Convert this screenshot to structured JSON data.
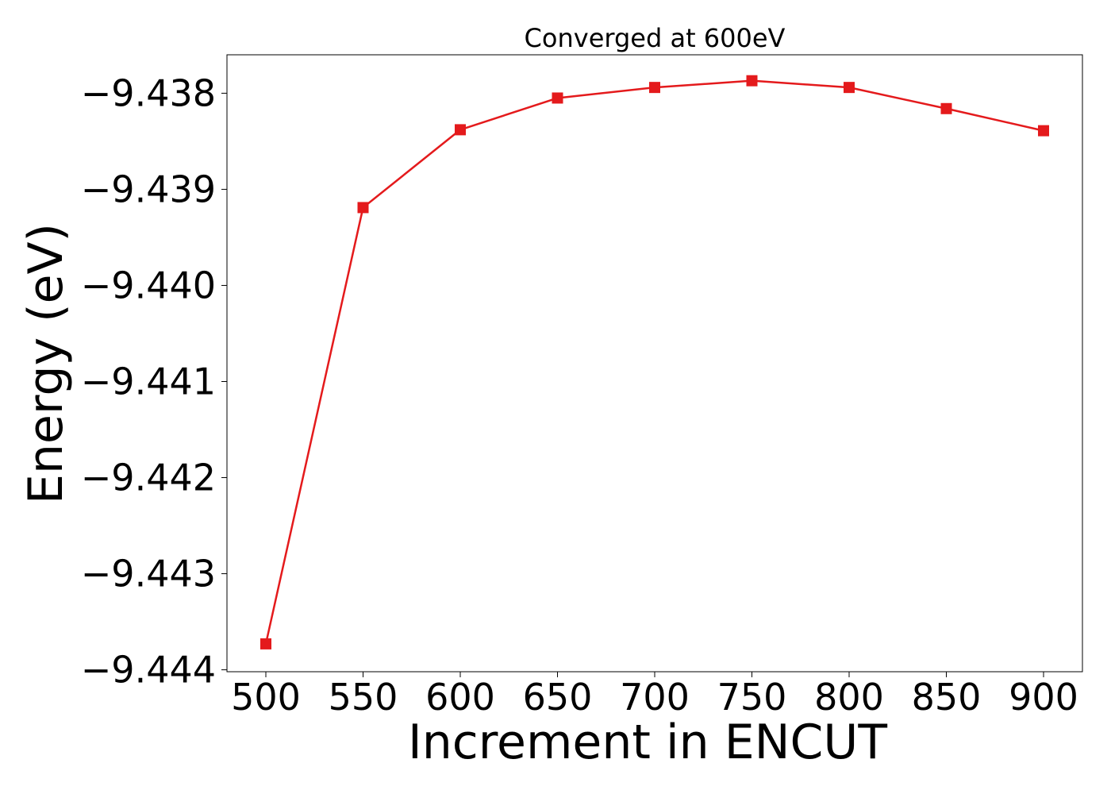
{
  "chart_data": {
    "type": "line",
    "title": "Converged at 600eV",
    "xlabel": "Increment in ENCUT",
    "ylabel": "Energy (eV)",
    "x": [
      500,
      550,
      600,
      650,
      700,
      750,
      800,
      850,
      900
    ],
    "xticks": [
      500,
      550,
      600,
      650,
      700,
      750,
      800,
      850,
      900
    ],
    "xtick_labels": [
      "500",
      "550",
      "600",
      "650",
      "700",
      "750",
      "800",
      "850",
      "900"
    ],
    "yticks": [
      -9.438,
      -9.439,
      -9.44,
      -9.441,
      -9.442,
      -9.443,
      -9.444
    ],
    "ytick_labels": [
      "−9.438",
      "−9.439",
      "−9.440",
      "−9.441",
      "−9.442",
      "−9.443",
      "−9.444"
    ],
    "xlim": [
      480,
      920
    ],
    "ylim": [
      -9.44402,
      -9.4376
    ],
    "series": [
      {
        "values": [
          -9.44373,
          -9.43919,
          -9.43838,
          -9.43805,
          -9.43794,
          -9.43787,
          -9.43794,
          -9.43816,
          -9.43839
        ],
        "color": "#e41a1c",
        "marker": "square"
      }
    ],
    "grid": false,
    "legend": "none"
  }
}
